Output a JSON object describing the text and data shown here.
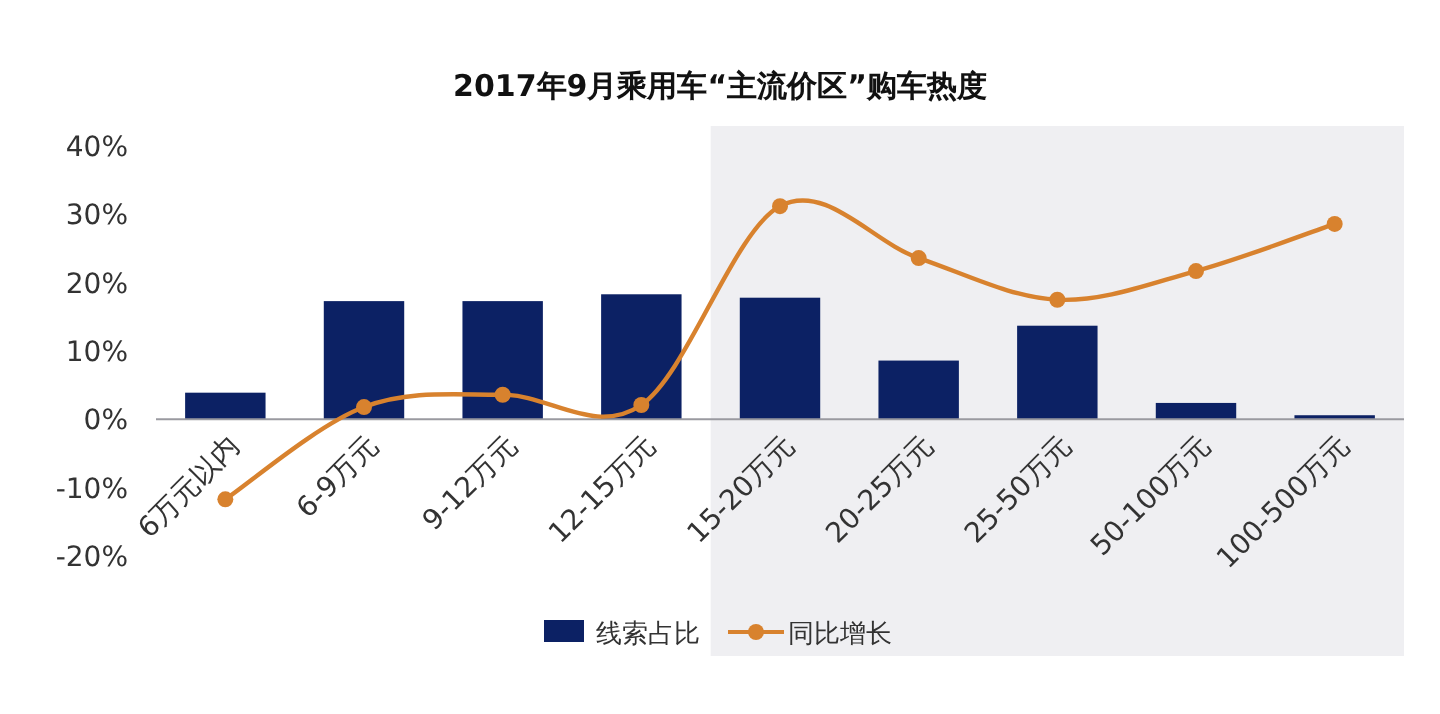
{
  "chart_data": {
    "type": "bar",
    "title": "2017年9月乘用车“主流价区”购车热度",
    "categories": [
      "6万元以内",
      "6-9万元",
      "9-12万元",
      "12-15万元",
      "15-20万元",
      "20-25万元",
      "25-50万元",
      "50-100万元",
      "100-500万元"
    ],
    "series": [
      {
        "name": "线索占比",
        "color": "#0c2164",
        "values": [
          3.9,
          17.3,
          17.3,
          18.3,
          17.8,
          8.6,
          13.7,
          2.4,
          0.6
        ]
      },
      {
        "name": "同比增长",
        "type": "line",
        "color": "#d8822e",
        "values": [
          -11.7,
          1.8,
          3.6,
          2.1,
          31.2,
          23.6,
          17.5,
          21.7,
          28.6
        ]
      }
    ],
    "ylim": [
      -20,
      40
    ],
    "yticks": [
      {
        "value": -20,
        "label": "-20%"
      },
      {
        "value": -10,
        "label": "-10%"
      },
      {
        "value": 0,
        "label": "0%"
      },
      {
        "value": 10,
        "label": "10%"
      },
      {
        "value": 20,
        "label": "20%"
      },
      {
        "value": 30,
        "label": "30%"
      },
      {
        "value": 40,
        "label": "40%"
      }
    ],
    "bands": [
      {
        "axis": "x",
        "from": "15-20万元",
        "to": "100-500万元",
        "color": "#efeff2"
      }
    ],
    "grid": false,
    "legend": "bottom",
    "marker": "circle",
    "line_style": "solid"
  }
}
